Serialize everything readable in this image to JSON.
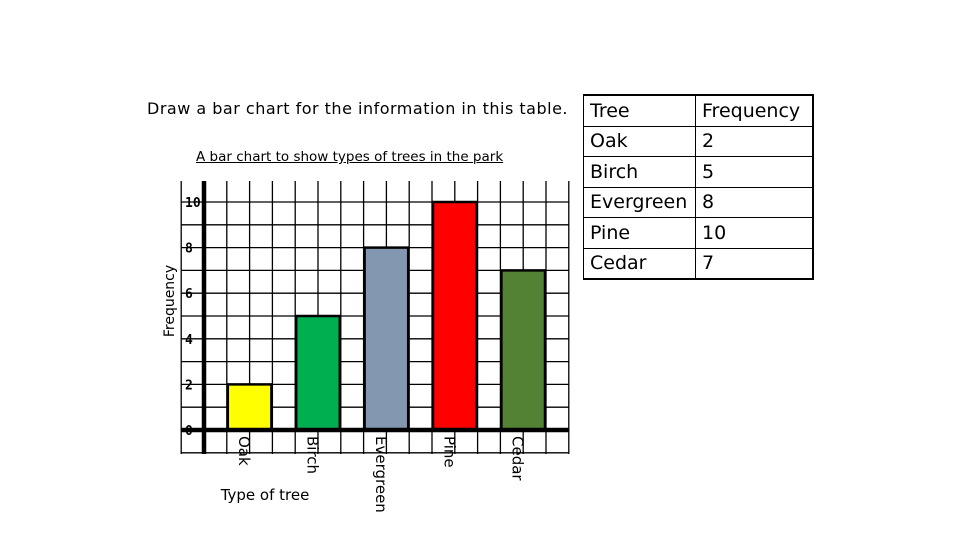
{
  "instruction": "Draw a bar chart for the information in this table.",
  "table": {
    "headers": [
      "Tree",
      "Frequency"
    ],
    "rows": [
      [
        "Oak",
        "2"
      ],
      [
        "Birch",
        "5"
      ],
      [
        "Evergreen",
        "8"
      ],
      [
        "Pine",
        "10"
      ],
      [
        "Cedar",
        "7"
      ]
    ]
  },
  "chart_data": {
    "type": "bar",
    "title": "A bar chart to show types of trees in the park",
    "xlabel": "Type of tree",
    "ylabel": "Frequency",
    "categories": [
      "Oak",
      "Birch",
      "Evergreen",
      "Pine",
      "Cedar"
    ],
    "values": [
      2,
      5,
      8,
      10,
      7
    ],
    "bar_colors": [
      "#ffff00",
      "#00b050",
      "#8497b0",
      "#ff0000",
      "#548235"
    ],
    "ylim": [
      0,
      10
    ],
    "yticks": [
      0,
      2,
      4,
      6,
      8,
      10
    ],
    "grid": true
  }
}
